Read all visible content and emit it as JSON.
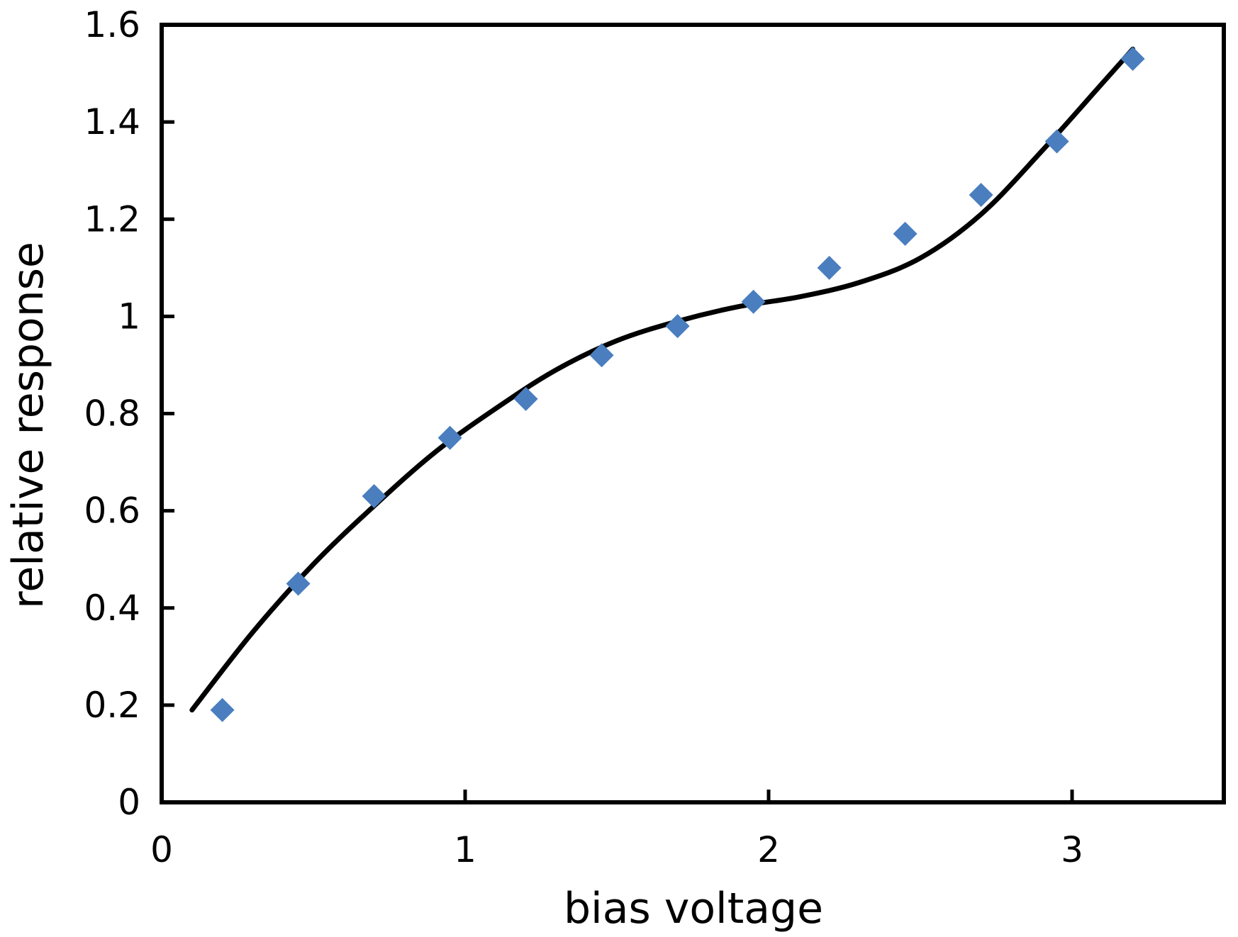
{
  "chart_data": {
    "type": "scatter",
    "title": "",
    "xlabel": "bias voltage",
    "ylabel": "relative response",
    "xlim": [
      0,
      3.5
    ],
    "ylim": [
      0,
      1.6
    ],
    "x_ticks": [
      0,
      1,
      2,
      3
    ],
    "y_ticks": [
      0,
      0.2,
      0.4,
      0.6,
      0.8,
      1,
      1.2,
      1.4,
      1.6
    ],
    "x_tick_labels": [
      "0",
      "1",
      "2",
      "3"
    ],
    "y_tick_labels": [
      "0",
      "0.2",
      "0.4",
      "0.6",
      "0.8",
      "1",
      "1.2",
      "1.4",
      "1.6"
    ],
    "grid": false,
    "legend": "none",
    "series": [
      {
        "kind": "markers",
        "marker": "diamond",
        "color": "#4a7ebf",
        "x": [
          0.2,
          0.45,
          0.7,
          0.95,
          1.2,
          1.45,
          1.7,
          1.95,
          2.2,
          2.45,
          2.7,
          2.95,
          3.2
        ],
        "y": [
          0.19,
          0.45,
          0.63,
          0.75,
          0.83,
          0.92,
          0.98,
          1.03,
          1.1,
          1.17,
          1.25,
          1.36,
          1.53
        ]
      },
      {
        "kind": "line",
        "color": "#000000",
        "x": [
          0.1,
          0.3,
          0.5,
          0.7,
          0.9,
          1.1,
          1.3,
          1.5,
          1.7,
          1.9,
          2.1,
          2.3,
          2.5,
          2.7,
          2.9,
          3.1,
          3.2
        ],
        "y": [
          0.19,
          0.35,
          0.49,
          0.61,
          0.72,
          0.81,
          0.89,
          0.95,
          0.99,
          1.02,
          1.04,
          1.07,
          1.12,
          1.21,
          1.34,
          1.48,
          1.55
        ]
      }
    ]
  }
}
